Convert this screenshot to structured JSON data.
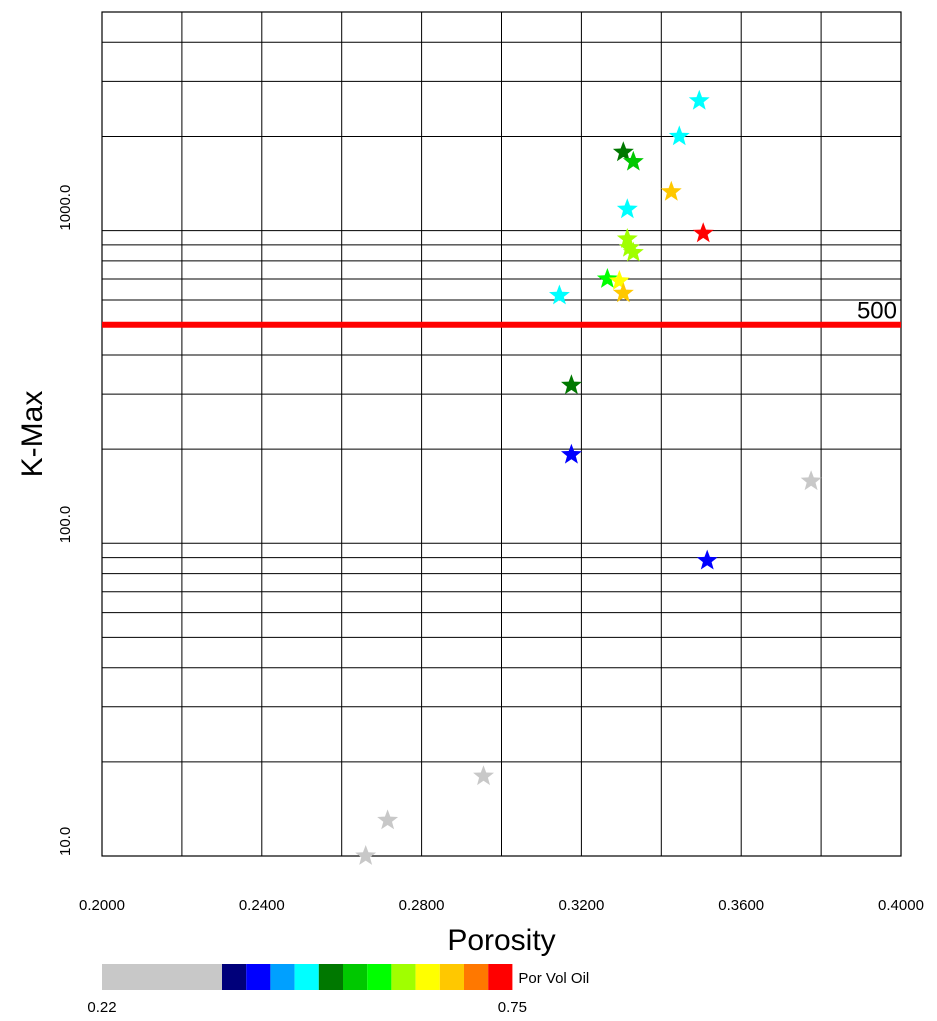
{
  "chart_data": {
    "type": "scatter",
    "x_axis": {
      "label": "Porosity",
      "range": [
        0.2,
        0.4
      ],
      "ticks": [
        0.2,
        0.24,
        0.28,
        0.32,
        0.36,
        0.4
      ],
      "tick_labels": [
        "0.2000",
        "0.2400",
        "0.2800",
        "0.3200",
        "0.3600",
        "0.4000"
      ]
    },
    "y_axis": {
      "label": "K-Max",
      "scale": "log",
      "range": [
        10,
        5000
      ],
      "tick_values": [
        10,
        100,
        1000
      ],
      "tick_labels": [
        "10.0",
        "100.0",
        "1000.0"
      ]
    },
    "grid": true,
    "marker": "star",
    "reference_line": {
      "value": 500,
      "label": "500",
      "color": "#ff0000"
    },
    "color_scale": {
      "label": "Por Vol Oil",
      "min_label": "0.22",
      "max_label": "0.75",
      "min": 0.22,
      "max": 0.75,
      "colors": [
        "#c8c8c8",
        "#00007a",
        "#0000ff",
        "#00a0ff",
        "#00ffff",
        "#007800",
        "#00c800",
        "#00ff00",
        "#a0ff00",
        "#ffff00",
        "#ffc800",
        "#ff7800",
        "#ff0000"
      ]
    },
    "points": [
      {
        "x": 0.3495,
        "y": 2600,
        "color": "#00ffff"
      },
      {
        "x": 0.3445,
        "y": 2000,
        "color": "#00ffff"
      },
      {
        "x": 0.3305,
        "y": 1780,
        "color": "#007800"
      },
      {
        "x": 0.333,
        "y": 1660,
        "color": "#00c800"
      },
      {
        "x": 0.3425,
        "y": 1330,
        "color": "#ffc800"
      },
      {
        "x": 0.3315,
        "y": 1170,
        "color": "#00ffff"
      },
      {
        "x": 0.3505,
        "y": 980,
        "color": "#ff0000"
      },
      {
        "x": 0.3315,
        "y": 940,
        "color": "#a0ff00"
      },
      {
        "x": 0.332,
        "y": 880,
        "color": "#a0ff00"
      },
      {
        "x": 0.333,
        "y": 850,
        "color": "#a0ff00"
      },
      {
        "x": 0.3265,
        "y": 700,
        "color": "#00ff00"
      },
      {
        "x": 0.3295,
        "y": 690,
        "color": "#ffff00"
      },
      {
        "x": 0.3305,
        "y": 630,
        "color": "#ffc800"
      },
      {
        "x": 0.3145,
        "y": 620,
        "color": "#00ffff"
      },
      {
        "x": 0.3175,
        "y": 320,
        "color": "#007800"
      },
      {
        "x": 0.3175,
        "y": 192,
        "color": "#0000ff"
      },
      {
        "x": 0.3775,
        "y": 158,
        "color": "#c8c8c8"
      },
      {
        "x": 0.3515,
        "y": 88,
        "color": "#0000ff"
      },
      {
        "x": 0.2955,
        "y": 18,
        "color": "#c8c8c8"
      },
      {
        "x": 0.2715,
        "y": 13,
        "color": "#c8c8c8"
      },
      {
        "x": 0.266,
        "y": 10,
        "color": "#c8c8c8"
      }
    ]
  }
}
